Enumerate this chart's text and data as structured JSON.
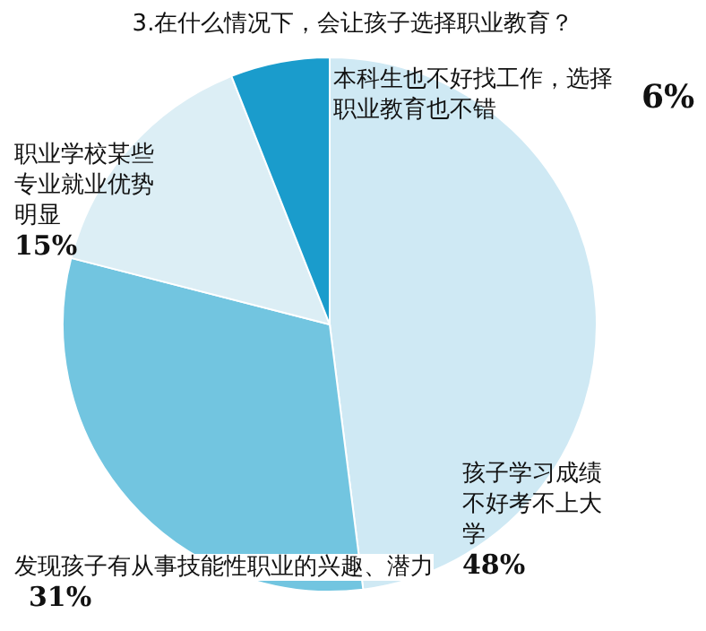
{
  "chart_data": {
    "type": "pie",
    "title": "3.在什么情况下，会让孩子选择职业教育？",
    "categories": [
      "孩子学习成绩不好考不上大学",
      "发现孩子有从事技能性职业的兴趣、潜力",
      "职业学校某些专业就业优势明显",
      "本科生也不好找工作，选择职业教育也不错"
    ],
    "values": [
      48,
      31,
      15,
      6
    ],
    "colors": [
      "#cfe9f4",
      "#72c5e0",
      "#dcEEf5",
      "#1a9ccc"
    ],
    "value_labels": [
      "48%",
      "31%",
      "15%",
      "6%"
    ]
  }
}
